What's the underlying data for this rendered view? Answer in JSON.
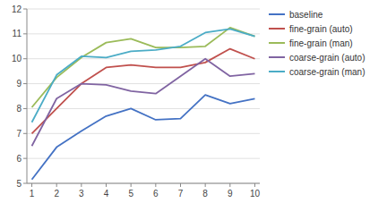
{
  "chart_data": {
    "type": "line",
    "x": [
      1,
      2,
      3,
      4,
      5,
      6,
      7,
      8,
      9,
      10
    ],
    "series": [
      {
        "name": "baseline",
        "color": "#4472c4",
        "values": [
          5.15,
          6.45,
          7.1,
          7.7,
          8.0,
          7.55,
          7.6,
          8.55,
          8.2,
          8.4
        ]
      },
      {
        "name": "fine-grain (auto)",
        "color": "#c0504d",
        "values": [
          7.0,
          8.0,
          9.0,
          9.65,
          9.75,
          9.65,
          9.65,
          9.85,
          10.4,
          10.0
        ]
      },
      {
        "name": "fine-grain (man)",
        "color": "#9bbb59",
        "values": [
          8.05,
          9.25,
          10.05,
          10.65,
          10.8,
          10.45,
          10.45,
          10.5,
          11.25,
          10.9
        ]
      },
      {
        "name": "coarse-grain (auto)",
        "color": "#8064a2",
        "values": [
          6.5,
          8.4,
          9.0,
          8.95,
          8.7,
          8.6,
          9.3,
          10.0,
          9.3,
          9.4
        ]
      },
      {
        "name": "coarse-grain (man)",
        "color": "#4bacc6",
        "values": [
          7.45,
          9.35,
          10.1,
          10.05,
          10.3,
          10.35,
          10.5,
          11.05,
          11.2,
          10.9
        ]
      }
    ],
    "xlim": [
      0.8,
      10.2
    ],
    "ylim": [
      5,
      12
    ],
    "xticks": [
      1,
      2,
      3,
      4,
      5,
      6,
      7,
      8,
      9,
      10
    ],
    "yticks": [
      5,
      6,
      7,
      8,
      9,
      10,
      11,
      12
    ],
    "grid": true,
    "legend": "right"
  }
}
